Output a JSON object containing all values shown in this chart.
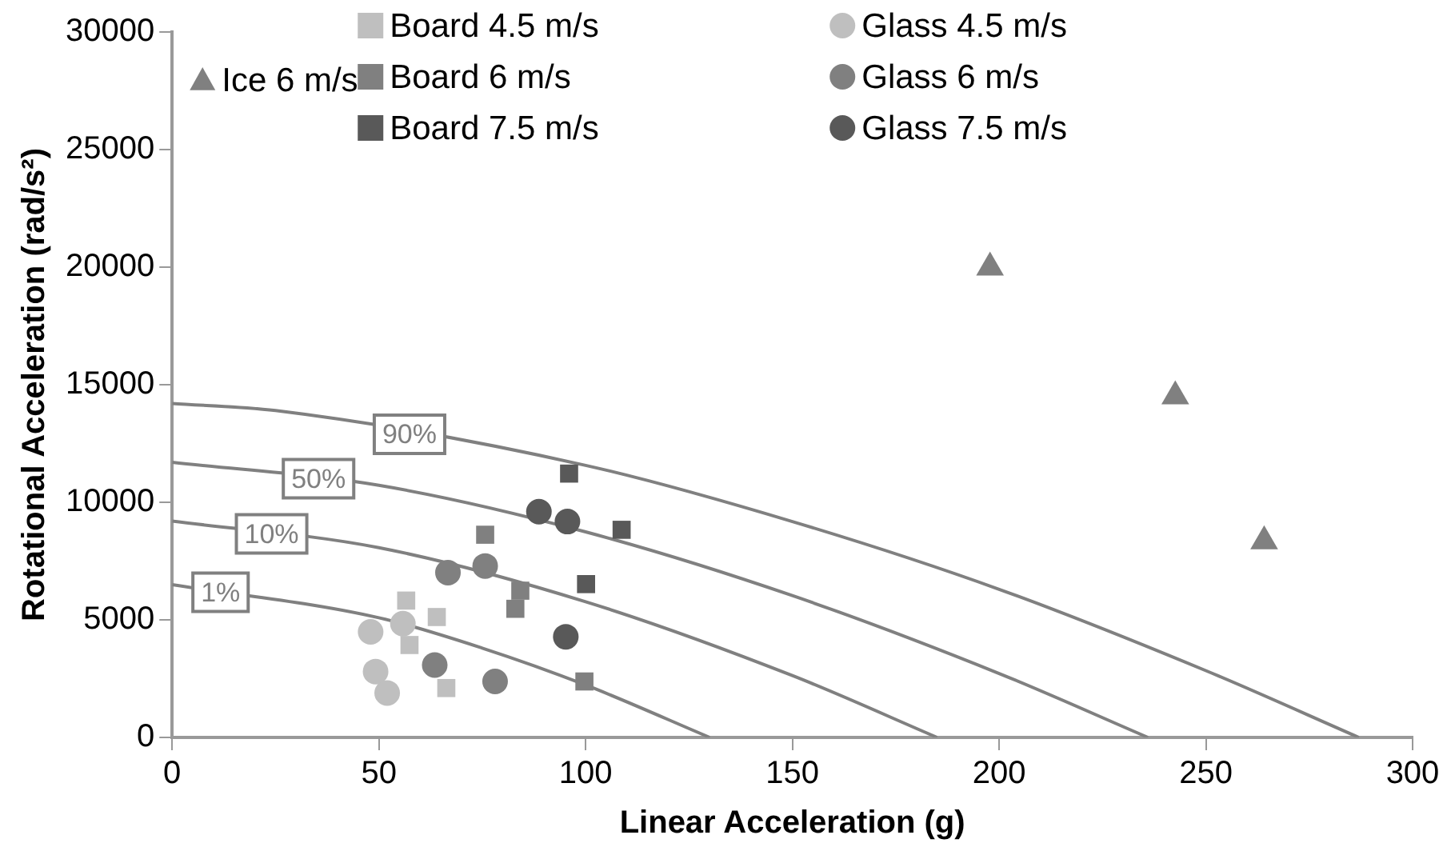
{
  "chart_data": {
    "type": "scatter",
    "xlabel": "Linear Acceleration (g)",
    "ylabel": "Rotational Acceleration (rad/s²)",
    "xlim": [
      0,
      300
    ],
    "xticks": [
      0,
      50,
      100,
      150,
      200,
      250,
      300
    ],
    "ylim": [
      0,
      30000
    ],
    "yticks": [
      0,
      5000,
      10000,
      15000,
      20000,
      25000,
      30000
    ],
    "grid": false,
    "legend": "top",
    "series": [
      {
        "name": "Ice 6 m/s",
        "color": "#808080",
        "marker": "triangle",
        "x": [
          197.8,
          242.6,
          264.1
        ],
        "values": [
          19980,
          14510,
          8340
        ]
      },
      {
        "name": "Board 4.5 m/s",
        "color": "#bfbfbf",
        "marker": "square",
        "x": [
          56.6,
          64,
          57.4,
          66.3
        ],
        "values": [
          5820,
          5120,
          3930,
          2100
        ]
      },
      {
        "name": "Board 6 m/s",
        "color": "#808080",
        "marker": "square",
        "x": [
          75.7,
          84.2,
          83,
          99.7
        ],
        "values": [
          8620,
          6240,
          5470,
          2380
        ]
      },
      {
        "name": "Board 7.5 m/s",
        "color": "#595959",
        "marker": "square",
        "x": [
          96,
          108.7,
          100.1
        ],
        "values": [
          11220,
          8830,
          6520
        ]
      },
      {
        "name": "Glass 4.5 m/s",
        "color": "#bfbfbf",
        "marker": "circle",
        "x": [
          48,
          55.8,
          49.2,
          52
        ],
        "values": [
          4490,
          4840,
          2800,
          1890
        ]
      },
      {
        "name": "Glass 6 m/s",
        "color": "#808080",
        "marker": "circle",
        "x": [
          66.7,
          75.7,
          63.5,
          78.1
        ],
        "values": [
          7010,
          7290,
          3080,
          2380
        ]
      },
      {
        "name": "Glass 7.5 m/s",
        "color": "#595959",
        "marker": "circle",
        "x": [
          88.7,
          95.6,
          95.2
        ],
        "values": [
          9600,
          9180,
          4280
        ]
      },
      {
        "name": "90%",
        "type": "line",
        "color": "#808080",
        "marker": "none",
        "x": [
          0,
          25,
          100,
          150,
          200,
          250,
          287
        ],
        "values": [
          14200,
          13900,
          11570,
          9180,
          6300,
          2840,
          0
        ]
      },
      {
        "name": "50%",
        "type": "line",
        "color": "#808080",
        "marker": "none",
        "x": [
          0,
          50,
          100,
          150,
          200,
          236
        ],
        "values": [
          11700,
          10720,
          8740,
          6030,
          2720,
          0
        ]
      },
      {
        "name": "10%",
        "type": "line",
        "color": "#808080",
        "marker": "none",
        "x": [
          0,
          50,
          100,
          150,
          185
        ],
        "values": [
          9200,
          8070,
          5770,
          2630,
          0
        ]
      },
      {
        "name": "1%",
        "type": "line",
        "color": "#808080",
        "marker": "none",
        "x": [
          0,
          50,
          75,
          100,
          130
        ],
        "values": [
          6500,
          5090,
          3800,
          2230,
          0
        ]
      }
    ]
  }
}
